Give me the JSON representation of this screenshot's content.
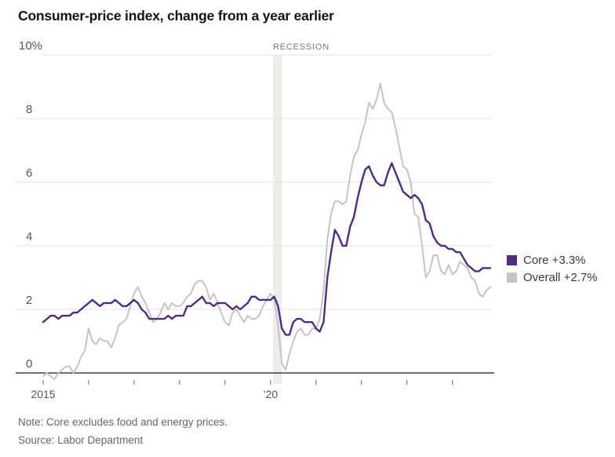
{
  "title": "Consumer-price index, change from a year earlier",
  "recession_label": "RECESSION",
  "note": "Note: Core excludes food and energy prices.",
  "source": "Source: Labor Department",
  "legend": [
    {
      "label": "Core +3.3%",
      "color": "#4f2c87"
    },
    {
      "label": "Overall +2.7%",
      "color": "#c4c4c4"
    }
  ],
  "colors": {
    "core_line": "#4f2c87",
    "overall_line": "#c4c4c4",
    "recession_band": "#ececea",
    "gridline": "#e4e2de",
    "zero_axis": "#3f3f3f",
    "tick": "#666666"
  },
  "chart_data": {
    "type": "line",
    "title": "Consumer-price index, change from a year earlier",
    "x_unit": "month",
    "x_range": [
      "2015-01",
      "2024-11"
    ],
    "ylim": [
      0,
      10
    ],
    "y_ticks": [
      0,
      2,
      4,
      6,
      8,
      10
    ],
    "y_tick_labels": [
      "0",
      "2",
      "4",
      "6",
      "8",
      "10%"
    ],
    "x_year_ticks": [
      2015,
      2016,
      2017,
      2018,
      2019,
      2020,
      2021,
      2022,
      2023,
      2024
    ],
    "x_tick_labels": [
      {
        "year_index": 0,
        "label": "2015"
      },
      {
        "year_index": 5,
        "label": "’20"
      }
    ],
    "recession_band": {
      "start": "2020-02",
      "end": "2020-04",
      "label": "RECESSION"
    },
    "grid": "horizontal",
    "legend_position": "right",
    "series": [
      {
        "name": "Overall",
        "latest_label": "Overall +2.7%",
        "values": [
          -0.1,
          0.0,
          -0.1,
          -0.2,
          0.0,
          0.1,
          0.2,
          0.2,
          0.0,
          0.2,
          0.5,
          0.7,
          1.4,
          1.0,
          0.9,
          1.1,
          1.0,
          1.0,
          0.8,
          1.1,
          1.5,
          1.6,
          1.7,
          2.1,
          2.5,
          2.7,
          2.4,
          2.2,
          1.9,
          1.6,
          1.7,
          1.9,
          2.2,
          2.0,
          2.2,
          2.1,
          2.1,
          2.2,
          2.4,
          2.5,
          2.8,
          2.9,
          2.9,
          2.7,
          2.3,
          2.5,
          2.2,
          1.9,
          1.6,
          1.5,
          1.9,
          2.0,
          1.8,
          1.6,
          1.8,
          1.7,
          1.7,
          1.8,
          2.1,
          2.3,
          2.5,
          2.3,
          1.5,
          0.3,
          0.1,
          0.6,
          1.0,
          1.3,
          1.4,
          1.2,
          1.2,
          1.4,
          1.4,
          1.7,
          2.6,
          4.2,
          5.0,
          5.4,
          5.4,
          5.3,
          5.4,
          6.2,
          6.8,
          7.0,
          7.5,
          7.9,
          8.5,
          8.3,
          8.6,
          9.1,
          8.5,
          8.3,
          8.2,
          7.7,
          7.1,
          6.5,
          6.4,
          6.0,
          5.0,
          4.9,
          4.0,
          3.0,
          3.2,
          3.7,
          3.7,
          3.2,
          3.1,
          3.4,
          3.1,
          3.2,
          3.5,
          3.4,
          3.3,
          3.0,
          2.9,
          2.5,
          2.4,
          2.6,
          2.7
        ]
      },
      {
        "name": "Core",
        "latest_label": "Core +3.3%",
        "values": [
          1.6,
          1.7,
          1.8,
          1.8,
          1.7,
          1.8,
          1.8,
          1.8,
          1.9,
          1.9,
          2.0,
          2.1,
          2.2,
          2.3,
          2.2,
          2.1,
          2.2,
          2.2,
          2.2,
          2.3,
          2.2,
          2.1,
          2.1,
          2.2,
          2.3,
          2.2,
          2.0,
          1.9,
          1.7,
          1.7,
          1.7,
          1.7,
          1.7,
          1.8,
          1.7,
          1.8,
          1.8,
          1.8,
          2.1,
          2.1,
          2.2,
          2.3,
          2.4,
          2.2,
          2.2,
          2.1,
          2.2,
          2.2,
          2.2,
          2.1,
          2.0,
          2.1,
          2.0,
          2.1,
          2.2,
          2.4,
          2.4,
          2.3,
          2.3,
          2.3,
          2.3,
          2.4,
          2.1,
          1.4,
          1.2,
          1.2,
          1.6,
          1.7,
          1.7,
          1.6,
          1.6,
          1.6,
          1.4,
          1.3,
          1.6,
          3.0,
          3.8,
          4.5,
          4.3,
          4.0,
          4.0,
          4.6,
          4.9,
          5.5,
          6.0,
          6.4,
          6.5,
          6.2,
          6.0,
          5.9,
          5.9,
          6.3,
          6.6,
          6.3,
          6.0,
          5.7,
          5.6,
          5.5,
          5.6,
          5.5,
          5.3,
          4.8,
          4.7,
          4.3,
          4.1,
          4.0,
          4.0,
          3.9,
          3.9,
          3.8,
          3.8,
          3.6,
          3.4,
          3.3,
          3.2,
          3.2,
          3.3,
          3.3,
          3.3
        ]
      }
    ]
  }
}
